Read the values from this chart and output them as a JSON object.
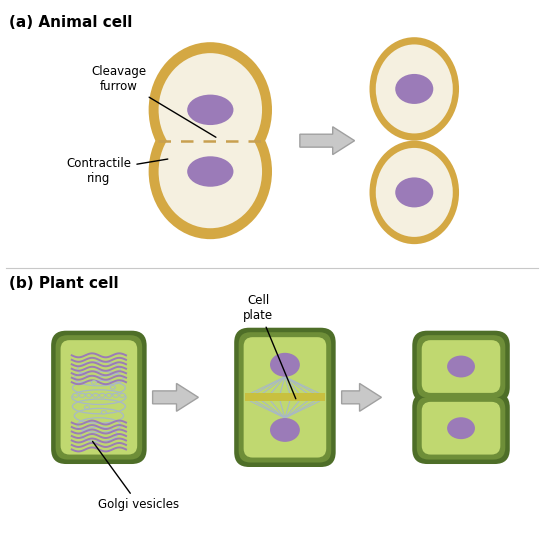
{
  "title_animal": "(a) Animal cell",
  "title_plant": "(b) Plant cell",
  "bg_color": "#ffffff",
  "animal_cell_outer": "#d4a843",
  "animal_cell_inner": "#f5f0e0",
  "animal_nucleus": "#9b7bb8",
  "plant_cell_outer_dark": "#4e6e28",
  "plant_cell_outer_mid": "#6e8e38",
  "plant_cell_inner": "#c0d870",
  "plant_nucleus": "#9b7bb8",
  "arrow_fill": "#c8c8c8",
  "arrow_edge": "#a0a0a0",
  "label_cleavage": "Cleavage\nfurrow",
  "label_contractile": "Contractile\nring",
  "label_cell_plate": "Cell\nplate",
  "label_golgi": "Golgi vesicles",
  "dashed_color": "#c8a050",
  "spindle_color": "#a8b8c8",
  "golgi_color": "#9b7bb8",
  "cell_plate_color": "#c8c040"
}
